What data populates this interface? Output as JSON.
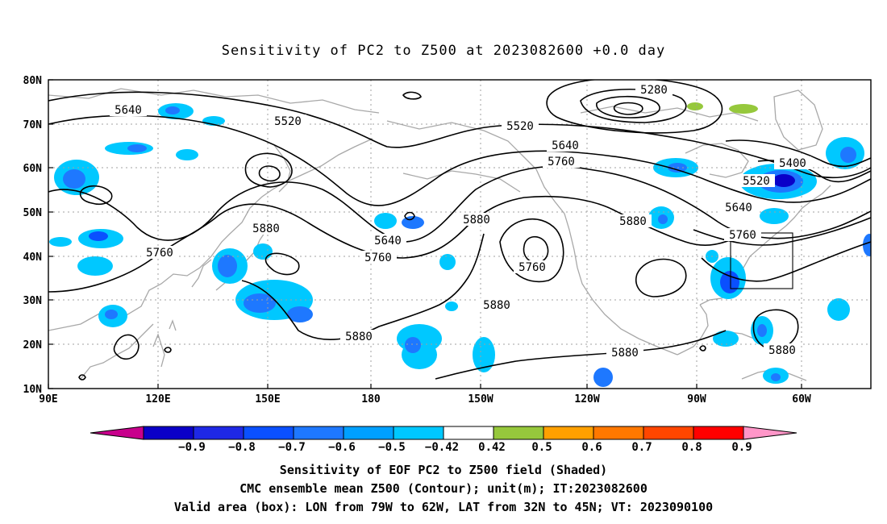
{
  "title": "Sensitivity of PC2 to Z500 at 2023082600 +0.0 day",
  "axes": {
    "lat_labels": [
      "80N",
      "70N",
      "60N",
      "50N",
      "40N",
      "30N",
      "20N",
      "10N"
    ],
    "lon_labels": [
      "90E",
      "120E",
      "150E",
      "180",
      "150W",
      "120W",
      "90W",
      "60W"
    ]
  },
  "contour_labels": [
    {
      "id": "c5640a",
      "text": "5640"
    },
    {
      "id": "c5520a",
      "text": "5520"
    },
    {
      "id": "c5520b",
      "text": "5520"
    },
    {
      "id": "c5280",
      "text": "5280"
    },
    {
      "id": "c5640b",
      "text": "5640"
    },
    {
      "id": "c5760a",
      "text": "5760"
    },
    {
      "id": "c5400",
      "text": "5400"
    },
    {
      "id": "c5520c",
      "text": "5520"
    },
    {
      "id": "c5640c",
      "text": "5640"
    },
    {
      "id": "c5760b",
      "text": "5760"
    },
    {
      "id": "c5880a",
      "text": "5880"
    },
    {
      "id": "c5640d",
      "text": "5640"
    },
    {
      "id": "c5760c",
      "text": "5760"
    },
    {
      "id": "c5880b",
      "text": "5880"
    },
    {
      "id": "c5760d",
      "text": "5760"
    },
    {
      "id": "c5880c",
      "text": "5880"
    },
    {
      "id": "c5760e",
      "text": "5760"
    },
    {
      "id": "c5880d",
      "text": "5880"
    },
    {
      "id": "c5880e",
      "text": "5880"
    },
    {
      "id": "c5880f",
      "text": "5880"
    },
    {
      "id": "c5880g",
      "text": "5880"
    }
  ],
  "colorbar": {
    "labels": [
      "−0.9",
      "−0.8",
      "−0.7",
      "−0.6",
      "−0.5",
      "−0.42",
      "0.42",
      "0.5",
      "0.6",
      "0.7",
      "0.8",
      "0.9"
    ],
    "colors": [
      "#0a00c8",
      "#1e28e6",
      "#0a50ff",
      "#1e78ff",
      "#00a0ff",
      "#00c8ff",
      "#ffffff",
      "#96c83c",
      "#ffa000",
      "#ff7800",
      "#ff4600",
      "#ff0000"
    ],
    "low_color": "#c8008c",
    "high_color": "#ff96c8"
  },
  "footer": [
    "Sensitivity of EOF PC2 to Z500 field (Shaded)",
    "CMC ensemble mean Z500 (Contour); unit(m); IT:2023082600",
    "Valid area (box): LON from 79W to 62W, LAT from 32N to 45N; VT: 2023090100"
  ],
  "valid_box": {
    "lon_min": -79,
    "lon_max": -62,
    "lat_min": 32,
    "lat_max": 45
  },
  "colors": {
    "contour": "#000000",
    "coast": "#a8a8a8",
    "grid": "#a0a0a0"
  }
}
